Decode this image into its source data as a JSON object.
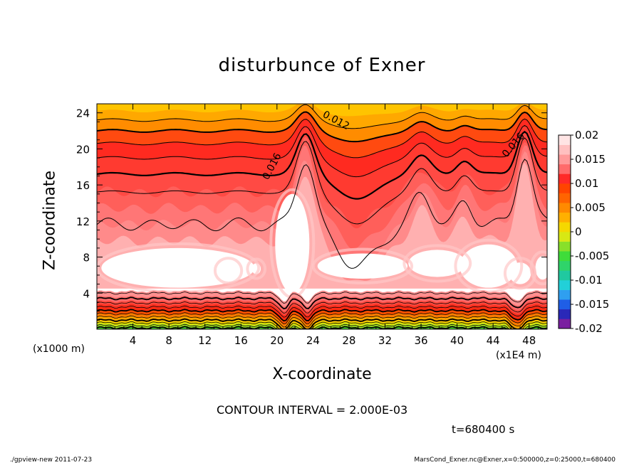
{
  "chart_data": {
    "type": "contour",
    "title": "disturbunce of Exner",
    "xlabel": "X-coordinate",
    "ylabel": "Z-coordinate",
    "x_unit_label": "(x1000 m)",
    "x_scale_label": "(x1E4 m)",
    "xlim": [
      0,
      50
    ],
    "ylim": [
      0,
      25
    ],
    "xticks": [
      4,
      8,
      12,
      16,
      20,
      24,
      28,
      32,
      36,
      40,
      44,
      48
    ],
    "yticks": [
      4,
      8,
      12,
      16,
      20,
      24
    ],
    "contour_interval_text": "CONTOUR INTERVAL = 2.000E-03",
    "contour_labels": [
      "0.012",
      "0.016",
      "0.016"
    ],
    "colorbar": {
      "min": -0.02,
      "max": 0.02,
      "tick_labels": [
        "0.02",
        "0.015",
        "0.01",
        "0.005",
        "0",
        "-0.005",
        "-0.01",
        "-0.015",
        "-0.02"
      ],
      "colors": [
        "#7a1fa0",
        "#2a28b8",
        "#1f5ee6",
        "#2f9ff0",
        "#22d0d8",
        "#20c9a0",
        "#2fd46a",
        "#3fdc3a",
        "#88e02a",
        "#d8e814",
        "#f5d800",
        "#ffb000",
        "#ff8a00",
        "#ff6400",
        "#ff4400",
        "#ff2a28",
        "#ff6b6b",
        "#ff9a9a",
        "#ffc0c0",
        "#ffe4e4"
      ]
    },
    "time_label": "t=680400 s"
  },
  "footer": {
    "left": "./gpview-new   2011-07-23",
    "right": "MarsCond_Exner.nc@Exner,x=0:500000,z=0:25000,t=680400"
  }
}
